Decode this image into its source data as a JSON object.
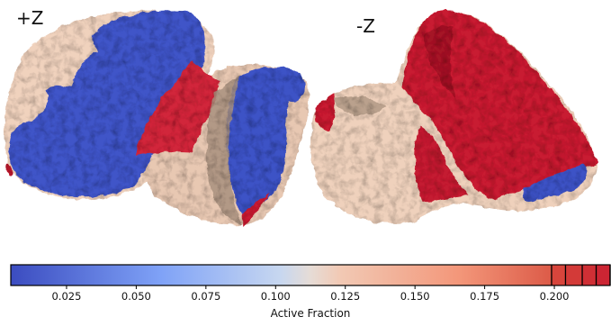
{
  "views": [
    {
      "label": "+Z"
    },
    {
      "label": "-Z"
    }
  ],
  "colors": {
    "low": "#3b4cc0",
    "mid": "#f2d6c4",
    "high": "#c81d31",
    "shadow_low": "#2a3a9a",
    "shadow_mid": "#b8a08f",
    "shadow_high": "#8e1020"
  },
  "chart_data": {
    "type": "heatmap",
    "colormap": "coolwarm",
    "colorbar": {
      "label": "Active Fraction",
      "orientation": "horizontal",
      "range": [
        0.005,
        0.22
      ],
      "ticks": [
        0.025,
        0.05,
        0.075,
        0.1,
        0.125,
        0.15,
        0.175,
        0.2
      ],
      "tick_labels": [
        "0.025",
        "0.050",
        "0.075",
        "0.100",
        "0.125",
        "0.150",
        "0.175",
        "0.200"
      ],
      "discrete_levels": [
        0.199,
        0.204,
        0.21,
        0.215,
        0.22
      ]
    }
  }
}
